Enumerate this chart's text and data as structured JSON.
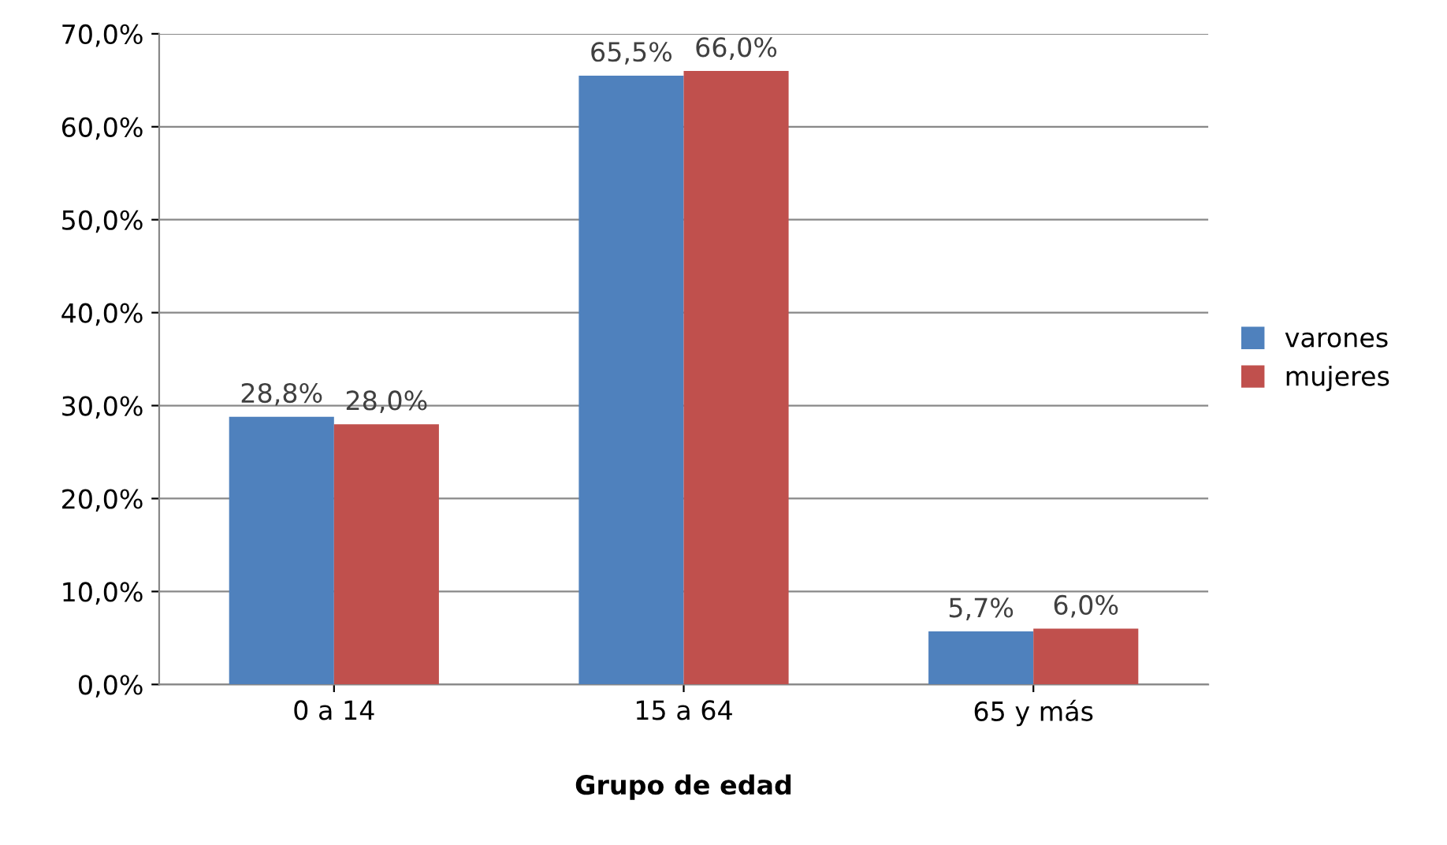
{
  "chart_data": {
    "type": "bar",
    "xlabel": "Grupo de edad",
    "categories": [
      "0 a 14",
      "15 a 64",
      "65 y más"
    ],
    "series": [
      {
        "name": "varones",
        "color": "#4f81bd",
        "values": [
          28.8,
          65.5,
          5.7
        ],
        "value_labels": [
          "28,8%",
          "65,5%",
          "5,7%"
        ]
      },
      {
        "name": "mujeres",
        "color": "#c0504d",
        "values": [
          28.0,
          66.0,
          6.0
        ],
        "value_labels": [
          "28,0%",
          "66,0%",
          "6,0%"
        ]
      }
    ],
    "ylim": [
      0,
      70
    ],
    "yticks": [
      {
        "value": 0,
        "label": "0,0%"
      },
      {
        "value": 10,
        "label": "10,0%"
      },
      {
        "value": 20,
        "label": "20,0%"
      },
      {
        "value": 30,
        "label": "30,0%"
      },
      {
        "value": 40,
        "label": "40,0%"
      },
      {
        "value": 50,
        "label": "50,0%"
      },
      {
        "value": 60,
        "label": "60,0%"
      },
      {
        "value": 70,
        "label": "70,0%"
      }
    ],
    "grid": "y",
    "legend": "right"
  }
}
